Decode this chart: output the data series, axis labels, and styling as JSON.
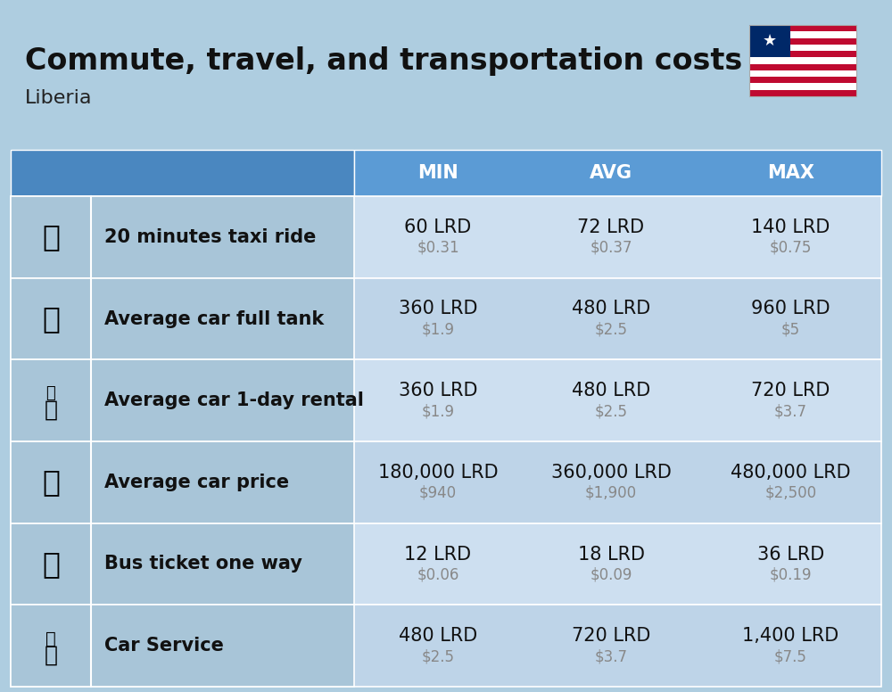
{
  "title": "Commute, travel, and transportation costs",
  "subtitle": "Liberia",
  "background_color": "#aecde0",
  "header_bg_color": "#5b9bd5",
  "header_text_color": "#ffffff",
  "row_colors": [
    "#cddff0",
    "#bed4e8"
  ],
  "icon_label_bg": "#b0c8dc",
  "columns": [
    "MIN",
    "AVG",
    "MAX"
  ],
  "rows": [
    {
      "label": "20 minutes taxi ride",
      "min_lrd": "60 LRD",
      "min_usd": "$0.31",
      "avg_lrd": "72 LRD",
      "avg_usd": "$0.37",
      "max_lrd": "140 LRD",
      "max_usd": "$0.75"
    },
    {
      "label": "Average car full tank",
      "min_lrd": "360 LRD",
      "min_usd": "$1.9",
      "avg_lrd": "480 LRD",
      "avg_usd": "$2.5",
      "max_lrd": "960 LRD",
      "max_usd": "$5"
    },
    {
      "label": "Average car 1-day rental",
      "min_lrd": "360 LRD",
      "min_usd": "$1.9",
      "avg_lrd": "480 LRD",
      "avg_usd": "$2.5",
      "max_lrd": "720 LRD",
      "max_usd": "$3.7"
    },
    {
      "label": "Average car price",
      "min_lrd": "180,000 LRD",
      "min_usd": "$940",
      "avg_lrd": "360,000 LRD",
      "avg_usd": "$1,900",
      "max_lrd": "480,000 LRD",
      "max_usd": "$2,500"
    },
    {
      "label": "Bus ticket one way",
      "min_lrd": "12 LRD",
      "min_usd": "$0.06",
      "avg_lrd": "18 LRD",
      "avg_usd": "$0.09",
      "max_lrd": "36 LRD",
      "max_usd": "$0.19"
    },
    {
      "label": "Car Service",
      "min_lrd": "480 LRD",
      "min_usd": "$2.5",
      "avg_lrd": "720 LRD",
      "avg_usd": "$3.7",
      "max_lrd": "1,400 LRD",
      "max_usd": "$7.5"
    }
  ],
  "title_fontsize": 24,
  "subtitle_fontsize": 16,
  "header_fontsize": 15,
  "cell_lrd_fontsize": 15,
  "cell_usd_fontsize": 12,
  "label_fontsize": 15
}
